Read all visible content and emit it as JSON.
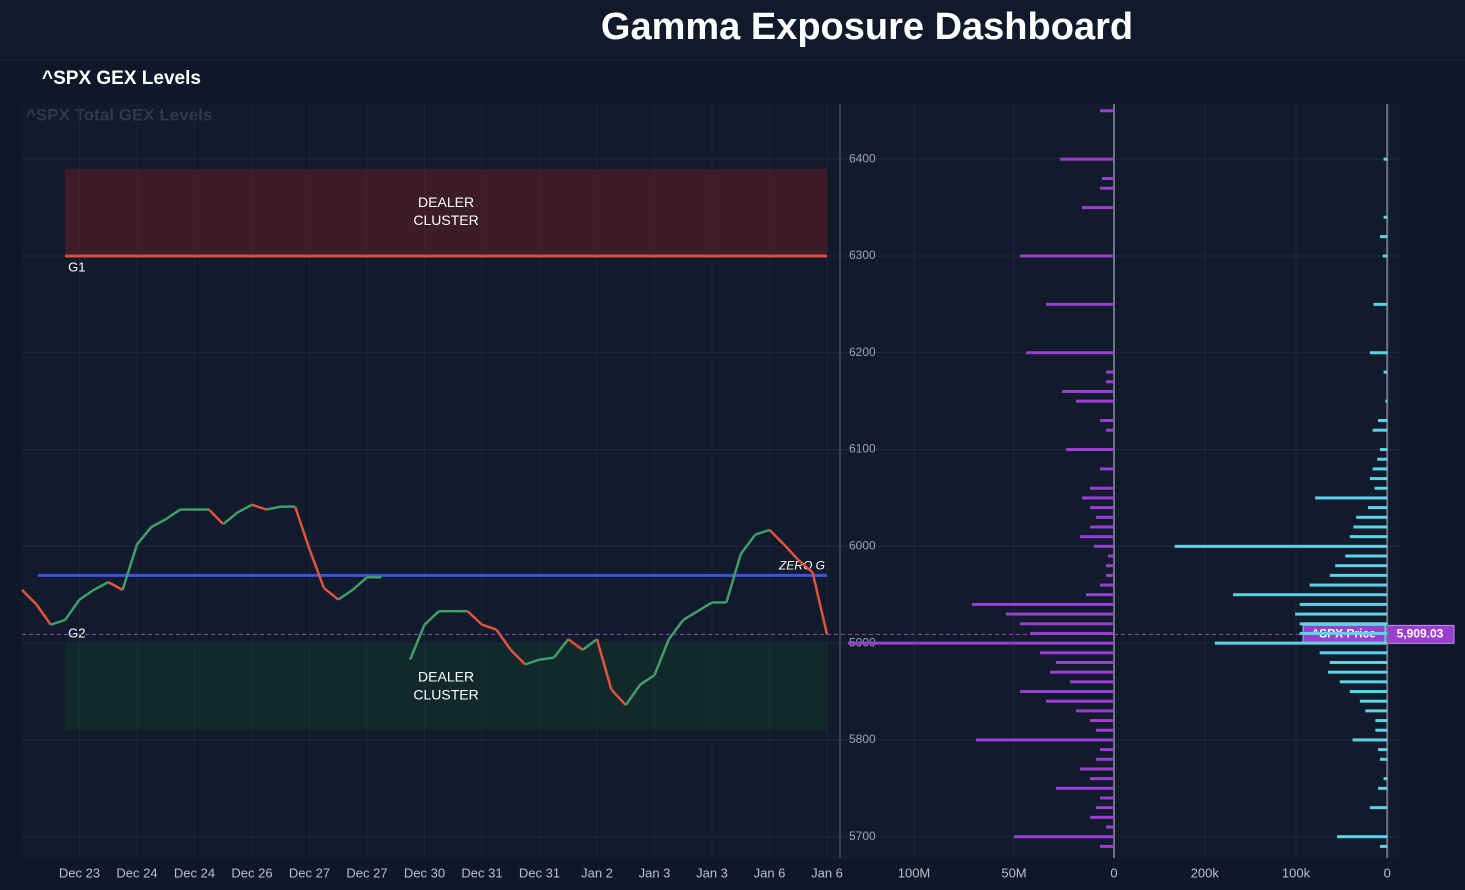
{
  "dashboard_title": "Gamma Exposure Dashboard",
  "panel_title": "^SPX GEX Levels",
  "chart_data": [
    {
      "type": "line",
      "title": "^SPX Total GEX Levels",
      "categories": [
        null,
        null,
        null,
        null,
        "Dec 23",
        null,
        null,
        null,
        "Dec 24",
        null,
        null,
        null,
        "Dec 24",
        null,
        null,
        null,
        "Dec 26",
        null,
        null,
        null,
        "Dec 27",
        null,
        null,
        null,
        "Dec 27",
        null,
        null,
        null,
        "Dec 30",
        null,
        null,
        null,
        "Dec 31",
        null,
        null,
        null,
        "Dec 31",
        null,
        null,
        null,
        "Jan 2",
        null,
        null,
        null,
        "Jan 3",
        null,
        null,
        null,
        "Jan 3",
        null,
        null,
        null,
        "Jan 6",
        null,
        null,
        null,
        "Jan 6"
      ],
      "series": [
        {
          "name": "^SPX",
          "colors": {
            "up": "#3f9e6a",
            "down": "#e0533f"
          },
          "values": [
            5955,
            5940,
            5919,
            5924,
            5945,
            5955,
            5963,
            5955,
            6002,
            6020,
            6028,
            6038,
            6038,
            6038,
            6023,
            6035,
            6043,
            6038,
            6041,
            6041,
            5997,
            5957,
            5945,
            5955,
            5968,
            5968,
            null,
            5883,
            5919,
            5933,
            5933,
            5933,
            5919,
            5914,
            5893,
            5878,
            5883,
            5885,
            5904,
            5893,
            5904,
            5852,
            5836,
            5857,
            5867,
            5904,
            5924,
            5933,
            5942,
            5942,
            5992,
            6012,
            6017,
            6002,
            5986,
            5973,
            5909
          ]
        }
      ],
      "ylim": [
        5678,
        6457
      ],
      "yticks": [
        5700,
        5800,
        5900,
        6000,
        6100,
        6200,
        6300,
        6400
      ],
      "grid": true,
      "zones": [
        {
          "label": [
            "DEALER",
            "CLUSTER"
          ],
          "range": [
            6300,
            6390
          ],
          "color": "rgba(110,30,35,0.45)"
        },
        {
          "label": [
            "DEALER",
            "CLUSTER"
          ],
          "range": [
            5810,
            5900
          ],
          "color": "rgba(20,70,45,0.32)"
        }
      ],
      "levels": [
        {
          "name": "G1",
          "value": 6300,
          "color": "#d9503f"
        },
        {
          "name": "ZERO G",
          "value": 5970,
          "color": "#3d52e8"
        },
        {
          "name": "G2",
          "value": 5905
        }
      ],
      "price": {
        "name": "^SPX Price",
        "value": 5909.03,
        "value_label": "5,909.03",
        "color": "#9b3fd1"
      }
    },
    {
      "type": "hbar",
      "color": "#9b3fd1",
      "y": [
        6450,
        6400,
        6380,
        6370,
        6350,
        6300,
        6250,
        6200,
        6180,
        6170,
        6160,
        6150,
        6130,
        6120,
        6100,
        6080,
        6060,
        6050,
        6040,
        6030,
        6020,
        6010,
        6000,
        5990,
        5980,
        5970,
        5960,
        5950,
        5940,
        5930,
        5920,
        5910,
        5900,
        5890,
        5880,
        5870,
        5860,
        5850,
        5840,
        5830,
        5820,
        5810,
        5800,
        5790,
        5780,
        5770,
        5760,
        5750,
        5740,
        5730,
        5720,
        5710,
        5700,
        5690
      ],
      "values": [
        7000000,
        27000000,
        6000000,
        7000000,
        16000000,
        47000000,
        34000000,
        44000000,
        4000000,
        4000000,
        26000000,
        19000000,
        7000000,
        4000000,
        24000000,
        7000000,
        12000000,
        16000000,
        12000000,
        9000000,
        12000000,
        17000000,
        10000000,
        3000000,
        4000000,
        4000000,
        7000000,
        14000000,
        71000000,
        54000000,
        47000000,
        42000000,
        133000000,
        37000000,
        29000000,
        32000000,
        22000000,
        47000000,
        34000000,
        19000000,
        12000000,
        9000000,
        69000000,
        7000000,
        9000000,
        17000000,
        12000000,
        29000000,
        7000000,
        9000000,
        12000000,
        4000000,
        50000000,
        7000000
      ],
      "xlim": [
        136000000,
        -13000000
      ],
      "xticks": [
        {
          "value": 100000000,
          "label": "100M"
        },
        {
          "value": 50000000,
          "label": "50M"
        },
        0
      ]
    },
    {
      "type": "hbar",
      "color": "#5fd3e6",
      "y": [
        6400,
        6340,
        6320,
        6300,
        6250,
        6200,
        6180,
        6150,
        6130,
        6120,
        6100,
        6090,
        6080,
        6070,
        6060,
        6050,
        6040,
        6030,
        6020,
        6010,
        6000,
        5990,
        5980,
        5970,
        5960,
        5950,
        5940,
        5930,
        5920,
        5910,
        5900,
        5890,
        5880,
        5870,
        5860,
        5850,
        5840,
        5830,
        5820,
        5810,
        5800,
        5790,
        5780,
        5760,
        5750,
        5730,
        5700,
        5690
      ],
      "values": [
        4000,
        4000,
        8000,
        5000,
        15000,
        19000,
        4000,
        2000,
        10000,
        16000,
        8000,
        11000,
        16000,
        19000,
        14000,
        79000,
        21000,
        34000,
        37000,
        41000,
        233000,
        46000,
        57000,
        63000,
        85000,
        169000,
        96000,
        101000,
        96000,
        96000,
        189000,
        74000,
        63000,
        65000,
        52000,
        41000,
        30000,
        24000,
        13000,
        13000,
        38000,
        10000,
        8000,
        4000,
        10000,
        19000,
        55000,
        8000
      ],
      "xlim": [
        271000,
        -14000
      ],
      "xticks": [
        {
          "value": 200000,
          "label": "200k"
        },
        {
          "value": 100000,
          "label": "100k"
        },
        0
      ]
    }
  ]
}
